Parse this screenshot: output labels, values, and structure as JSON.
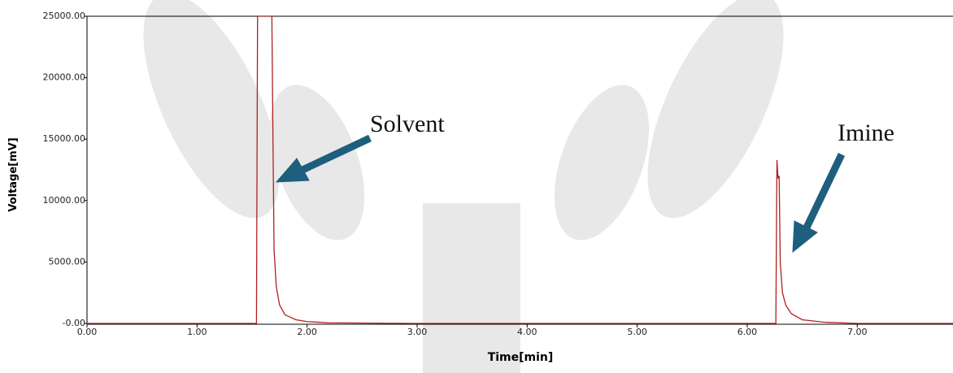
{
  "chart_data": {
    "type": "line",
    "x_label": "Time[min]",
    "y_label": "Voltage[mV]",
    "x": [
      0,
      1.54,
      1.55,
      1.56,
      1.68,
      1.69,
      1.7,
      1.72,
      1.75,
      1.8,
      1.9,
      2.0,
      2.2,
      3,
      4,
      5,
      6,
      6.26,
      6.27,
      6.28,
      6.29,
      6.3,
      6.32,
      6.35,
      6.4,
      6.5,
      6.7,
      7.0,
      7.5,
      7.87
    ],
    "values": [
      0,
      0,
      25000,
      25000,
      25000,
      15000,
      6000,
      3000,
      1500,
      700,
      300,
      150,
      50,
      0,
      0,
      0,
      0,
      0,
      13300,
      11800,
      12000,
      5000,
      2500,
      1500,
      800,
      300,
      100,
      0,
      0,
      0
    ],
    "color": "#b02020",
    "xlim": [
      0,
      7.87
    ],
    "ylim": [
      0,
      25000
    ],
    "xticks": [
      {
        "value": 0,
        "label": "0.00"
      },
      {
        "value": 1,
        "label": "1.00"
      },
      {
        "value": 2,
        "label": "2.00"
      },
      {
        "value": 3,
        "label": "3.00"
      },
      {
        "value": 4,
        "label": "4.00"
      },
      {
        "value": 5,
        "label": "5.00"
      },
      {
        "value": 6,
        "label": "6.00"
      },
      {
        "value": 7,
        "label": "7.00"
      }
    ],
    "yticks": [
      {
        "value": 0,
        "label": "-0.00"
      },
      {
        "value": 5000,
        "label": "5000.00"
      },
      {
        "value": 10000,
        "label": "10000.00"
      },
      {
        "value": 15000,
        "label": "15000.00"
      },
      {
        "value": 20000,
        "label": "20000.00"
      },
      {
        "value": 25000,
        "label": "25000.00"
      }
    ],
    "annotations": [
      "Solvent",
      "Imine"
    ]
  }
}
